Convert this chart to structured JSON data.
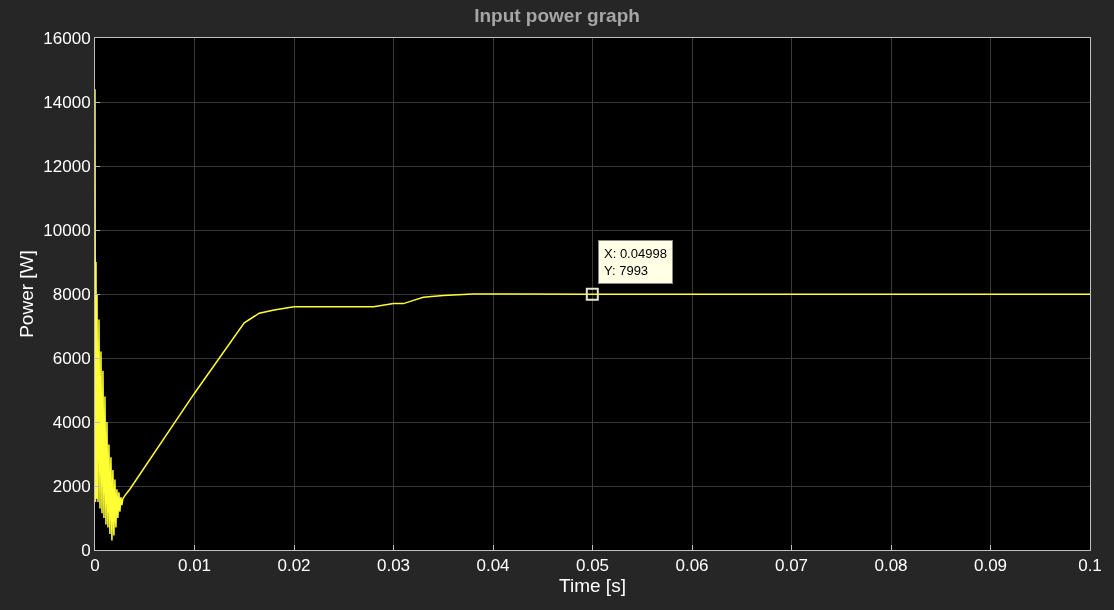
{
  "chart_data": {
    "type": "line",
    "title": "Input power graph",
    "xlabel": "Time [s]",
    "ylabel": "Power [W]",
    "x": [
      0,
      5e-05,
      0.0001,
      0.00015,
      0.0002,
      0.0003,
      0.0004,
      0.0005,
      0.0006,
      0.0007,
      0.0008,
      0.0009,
      0.001,
      0.0011,
      0.0012,
      0.0013,
      0.0014,
      0.0015,
      0.0016,
      0.0017,
      0.0018,
      0.0019,
      0.002,
      0.0021,
      0.0022,
      0.0023,
      0.0024,
      0.0025,
      0.0026,
      0.0027,
      0.0028,
      0.003,
      0.0035,
      0.01,
      0.015,
      0.0165,
      0.018,
      0.02,
      0.025,
      0.028,
      0.03,
      0.031,
      0.032,
      0.033,
      0.035,
      0.038,
      0.04,
      0.05,
      0.07,
      0.1
    ],
    "series": [
      {
        "color": "#ffff33",
        "values": [
          14400,
          1500,
          9000,
          1600,
          8000,
          1500,
          7200,
          1300,
          6200,
          1150,
          5600,
          1000,
          4800,
          800,
          4000,
          700,
          3300,
          500,
          2900,
          300,
          2500,
          450,
          2200,
          700,
          1900,
          1000,
          1800,
          1200,
          1650,
          1400,
          1600,
          1700,
          1900,
          4900,
          7100,
          7400,
          7500,
          7600,
          7600,
          7600,
          7700,
          7700,
          7800,
          7900,
          7950,
          8000,
          8000,
          7993,
          7993,
          7993
        ]
      }
    ],
    "xlim": [
      0,
      0.1
    ],
    "xticks": [
      0,
      0.01,
      0.02,
      0.03,
      0.04,
      0.05,
      0.06,
      0.07,
      0.08,
      0.09,
      0.1
    ],
    "ylim": [
      0,
      16000
    ],
    "yticks": [
      0,
      2000,
      4000,
      6000,
      8000,
      10000,
      12000,
      14000,
      16000
    ],
    "grid": true,
    "marker": "none",
    "line_style": "solid",
    "annotations": [
      {
        "text": "X: 0.04998\nY: 7993",
        "x": 0.04998,
        "y": 7993
      }
    ]
  }
}
